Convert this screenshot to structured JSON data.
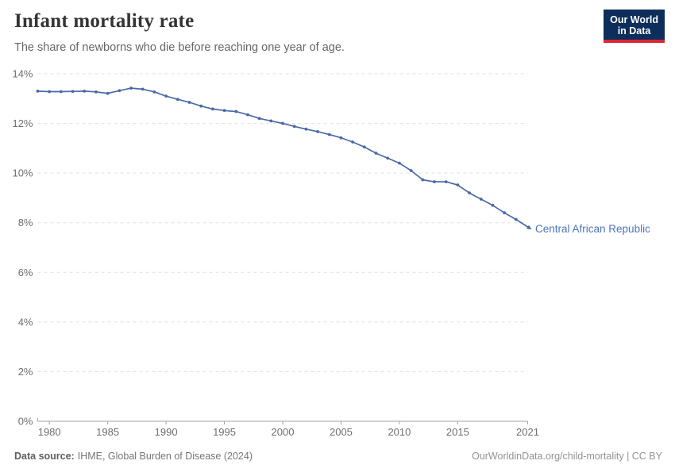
{
  "header": {
    "title": "Infant mortality rate",
    "subtitle": "The share of newborns who die before reaching one year of age."
  },
  "logo": {
    "line1": "Our World",
    "line2": "in Data"
  },
  "colors": {
    "line": "#4a69a8",
    "entity_label": "#4e74b8",
    "logo_bg": "#0d2e5a",
    "logo_accent": "#dc2638"
  },
  "chart_data": {
    "type": "line",
    "title": "Infant mortality rate",
    "xlabel": "",
    "ylabel": "",
    "xlim": [
      1979,
      2021
    ],
    "ylim": [
      0,
      14
    ],
    "x_ticks": [
      1980,
      1985,
      1990,
      1995,
      2000,
      2005,
      2010,
      2015,
      2021
    ],
    "y_ticks": [
      0,
      2,
      4,
      6,
      8,
      10,
      12,
      14
    ],
    "y_tick_suffix": "%",
    "grid": "horizontal-dashed",
    "legend_position": "end-of-line-label",
    "series": [
      {
        "name": "Central African Republic",
        "color": "#4a69a8",
        "x": [
          1979,
          1980,
          1981,
          1982,
          1983,
          1984,
          1985,
          1986,
          1987,
          1988,
          1989,
          1990,
          1991,
          1992,
          1993,
          1994,
          1995,
          1996,
          1997,
          1998,
          1999,
          2000,
          2001,
          2002,
          2003,
          2004,
          2005,
          2006,
          2007,
          2008,
          2009,
          2010,
          2011,
          2012,
          2013,
          2014,
          2015,
          2016,
          2017,
          2018,
          2019,
          2020,
          2021
        ],
        "values": [
          13.3,
          13.28,
          13.28,
          13.29,
          13.3,
          13.27,
          13.21,
          13.32,
          13.42,
          13.38,
          13.27,
          13.1,
          12.97,
          12.85,
          12.7,
          12.58,
          12.52,
          12.48,
          12.35,
          12.2,
          12.1,
          12.0,
          11.88,
          11.77,
          11.67,
          11.55,
          11.42,
          11.25,
          11.05,
          10.8,
          10.6,
          10.4,
          10.1,
          9.73,
          9.65,
          9.65,
          9.52,
          9.2,
          8.95,
          8.7,
          8.4,
          8.13,
          7.83
        ]
      }
    ]
  },
  "footer": {
    "source_label": "Data source:",
    "source_text": "IHME, Global Burden of Disease (2024)",
    "credit": "OurWorldinData.org/child-mortality | CC BY"
  }
}
